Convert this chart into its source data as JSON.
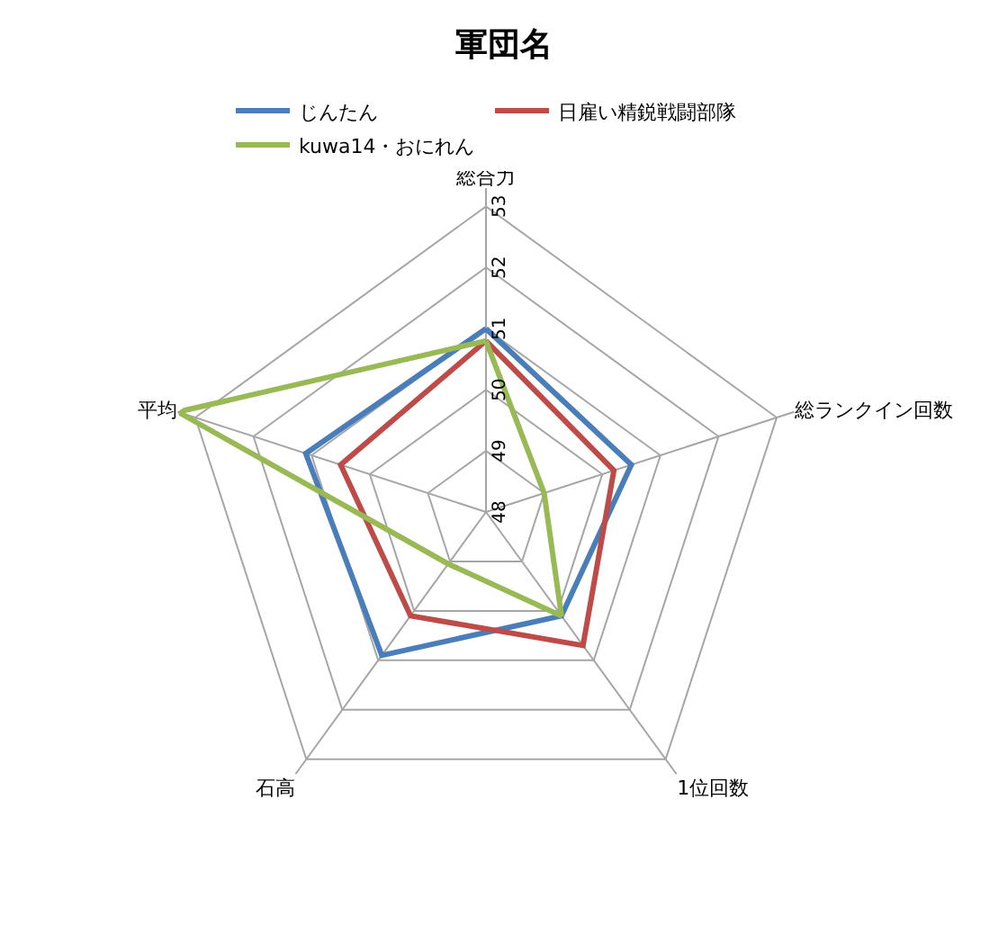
{
  "chart_data": {
    "type": "radar",
    "title": "軍団名",
    "categories": [
      "総合力",
      "総ランクイン回数",
      "1位回数",
      "石高",
      "平均"
    ],
    "series": [
      {
        "name": "じんたん",
        "color": "#4a7ebb",
        "values": [
          51.0,
          50.5,
          50.1,
          50.9,
          51.1
        ]
      },
      {
        "name": "日雇い精鋭戦闘部隊",
        "color": "#be4b48",
        "values": [
          50.8,
          50.2,
          50.7,
          50.1,
          50.5
        ]
      },
      {
        "name": "kuwa14・おにれん",
        "color": "#98b954",
        "values": [
          50.8,
          49.0,
          50.1,
          49.05,
          53.3
        ]
      }
    ],
    "ylim": [
      48,
      53.3
    ],
    "yticks": [
      48,
      49,
      50,
      51,
      52,
      53
    ],
    "legend": "top",
    "marker": "none",
    "line_style": "solid",
    "grid": true
  }
}
